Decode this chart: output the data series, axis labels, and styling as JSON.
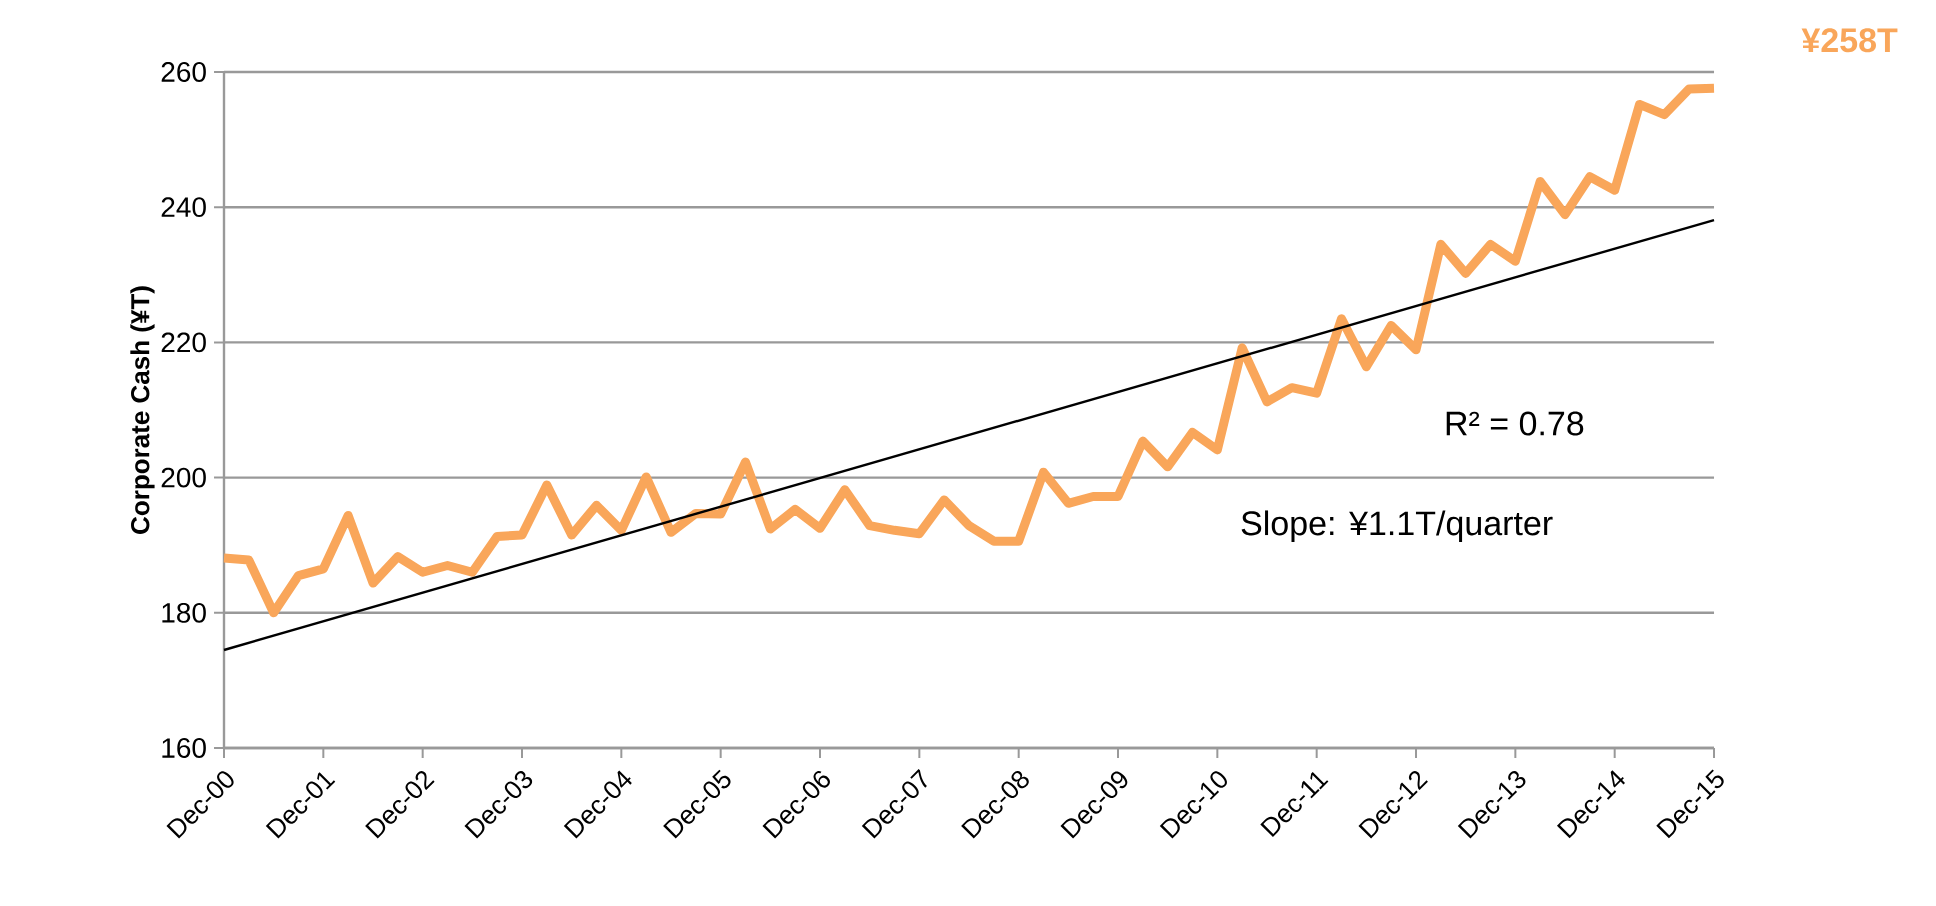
{
  "chart_data": {
    "type": "line",
    "ylabel": "Corporate Cash (¥T)",
    "x": [
      "2000-12",
      "2001-03",
      "2001-06",
      "2001-09",
      "2001-12",
      "2002-03",
      "2002-06",
      "2002-09",
      "2002-12",
      "2003-03",
      "2003-06",
      "2003-09",
      "2003-12",
      "2004-03",
      "2004-06",
      "2004-09",
      "2004-12",
      "2005-03",
      "2005-06",
      "2005-09",
      "2005-12",
      "2006-03",
      "2006-06",
      "2006-09",
      "2006-12",
      "2007-03",
      "2007-06",
      "2007-09",
      "2007-12",
      "2008-03",
      "2008-06",
      "2008-09",
      "2008-12",
      "2009-03",
      "2009-06",
      "2009-09",
      "2009-12",
      "2010-03",
      "2010-06",
      "2010-09",
      "2010-12",
      "2011-03",
      "2011-06",
      "2011-09",
      "2011-12",
      "2012-03",
      "2012-06",
      "2012-09",
      "2012-12",
      "2013-03",
      "2013-06",
      "2013-09",
      "2013-12",
      "2014-03",
      "2014-06",
      "2014-09",
      "2014-12",
      "2015-03",
      "2015-06",
      "2015-09",
      "2015-12"
    ],
    "series": [
      {
        "color": "#f9a65a",
        "line_style": "solid",
        "values": [
          188.1,
          187.8,
          180.0,
          185.5,
          186.5,
          194.4,
          184.4,
          188.3,
          186.0,
          187.0,
          186.0,
          191.3,
          191.5,
          198.9,
          191.5,
          195.9,
          192.2,
          200.1,
          191.9,
          194.7,
          194.6,
          202.3,
          192.4,
          195.3,
          192.5,
          198.2,
          192.9,
          192.2,
          191.7,
          196.7,
          192.9,
          190.6,
          190.6,
          200.8,
          196.2,
          197.2,
          197.2,
          205.4,
          201.6,
          206.7,
          204.1,
          219.2,
          211.2,
          213.3,
          212.5,
          223.5,
          216.4,
          222.5,
          218.9,
          234.5,
          230.2,
          234.5,
          232.0,
          243.8,
          238.9,
          244.5,
          242.5,
          255.2,
          253.7,
          257.5,
          257.6
        ]
      },
      {
        "type": "line",
        "color": "#000000",
        "line_style": "solid",
        "x": [
          "2000-12",
          "2015-12"
        ],
        "values": [
          174.5,
          238.1
        ]
      }
    ],
    "xlim": [
      "2000-12",
      "2015-12"
    ],
    "xticks": [
      {
        "value": "2000-12",
        "label": "Dec-00"
      },
      {
        "value": "2001-12",
        "label": "Dec-01"
      },
      {
        "value": "2002-12",
        "label": "Dec-02"
      },
      {
        "value": "2003-12",
        "label": "Dec-03"
      },
      {
        "value": "2004-12",
        "label": "Dec-04"
      },
      {
        "value": "2005-12",
        "label": "Dec-05"
      },
      {
        "value": "2006-12",
        "label": "Dec-06"
      },
      {
        "value": "2007-12",
        "label": "Dec-07"
      },
      {
        "value": "2008-12",
        "label": "Dec-08"
      },
      {
        "value": "2009-12",
        "label": "Dec-09"
      },
      {
        "value": "2010-12",
        "label": "Dec-10"
      },
      {
        "value": "2011-12",
        "label": "Dec-11"
      },
      {
        "value": "2012-12",
        "label": "Dec-12"
      },
      {
        "value": "2013-12",
        "label": "Dec-13"
      },
      {
        "value": "2014-12",
        "label": "Dec-14"
      },
      {
        "value": "2015-12",
        "label": "Dec-15"
      }
    ],
    "ylim": [
      160,
      260
    ],
    "yticks": [
      160,
      180,
      200,
      220,
      240,
      260
    ],
    "grid": "y",
    "marker": "none",
    "annotations": [
      "R² = 0.78",
      "Slope: ¥1.1T/quarter",
      "¥258T"
    ]
  }
}
